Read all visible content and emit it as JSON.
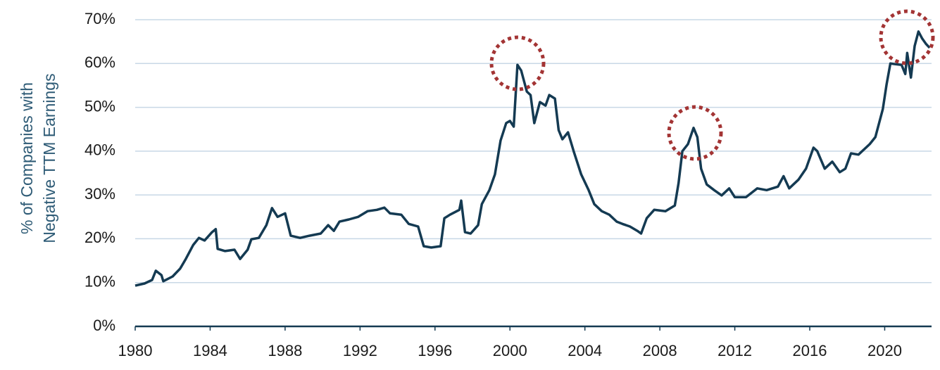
{
  "chart_data": {
    "type": "line",
    "ylabel": [
      "% of Companies with",
      "Negative TTM Earnings"
    ],
    "color": "#143a52",
    "x": [
      1980.0,
      1980.5,
      1980.9,
      1981.1,
      1981.4,
      1981.5,
      1982.0,
      1982.4,
      1982.7,
      1983.1,
      1983.4,
      1983.7,
      1984.1,
      1984.3,
      1984.4,
      1984.8,
      1985.3,
      1985.6,
      1986.0,
      1986.2,
      1986.6,
      1987.0,
      1987.3,
      1987.6,
      1988.0,
      1988.3,
      1988.8,
      1989.3,
      1989.9,
      1990.3,
      1990.6,
      1990.9,
      1991.4,
      1991.9,
      1992.4,
      1992.9,
      1993.3,
      1993.6,
      1994.2,
      1994.6,
      1995.1,
      1995.4,
      1995.8,
      1996.3,
      1996.5,
      1996.8,
      1997.3,
      1997.4,
      1997.6,
      1997.9,
      1998.3,
      1998.5,
      1998.9,
      1999.2,
      1999.5,
      1999.8,
      2000.0,
      2000.2,
      2000.4,
      2000.6,
      2000.9,
      2001.1,
      2001.3,
      2001.6,
      2001.9,
      2002.1,
      2002.4,
      2002.6,
      2002.8,
      2003.1,
      2003.4,
      2003.8,
      2004.2,
      2004.5,
      2004.9,
      2005.3,
      2005.7,
      2006.0,
      2006.4,
      2006.8,
      2007.0,
      2007.3,
      2007.7,
      2008.3,
      2008.8,
      2009.0,
      2009.2,
      2009.5,
      2009.8,
      2010.0,
      2010.2,
      2010.5,
      2010.9,
      2011.3,
      2011.7,
      2012.0,
      2012.6,
      2013.2,
      2013.7,
      2014.3,
      2014.6,
      2014.9,
      2015.4,
      2015.8,
      2016.2,
      2016.4,
      2016.8,
      2017.2,
      2017.6,
      2017.9,
      2018.2,
      2018.6,
      2019.2,
      2019.5,
      2019.9,
      2020.1,
      2020.3,
      2020.9,
      2021.1,
      2021.2,
      2021.4,
      2021.6,
      2021.8,
      2022.0,
      2022.2,
      2022.4
    ],
    "values": [
      9.3,
      9.8,
      10.6,
      12.7,
      11.7,
      10.3,
      11.4,
      13.2,
      15.4,
      18.6,
      20.2,
      19.6,
      21.5,
      22.2,
      17.7,
      17.2,
      17.5,
      15.4,
      17.5,
      19.9,
      20.2,
      23.1,
      27.0,
      25.0,
      25.8,
      20.7,
      20.2,
      20.7,
      21.2,
      23.1,
      21.8,
      23.9,
      24.4,
      25.0,
      26.3,
      26.6,
      27.1,
      25.8,
      25.5,
      23.4,
      22.8,
      18.3,
      18.0,
      18.3,
      24.7,
      25.5,
      26.6,
      28.7,
      21.5,
      21.2,
      23.1,
      27.9,
      31.1,
      34.7,
      42.4,
      46.4,
      46.9,
      45.6,
      59.7,
      58.4,
      53.6,
      52.8,
      46.4,
      51.2,
      50.4,
      52.8,
      52.0,
      44.8,
      42.7,
      44.3,
      40.0,
      34.7,
      31.1,
      27.9,
      26.3,
      25.5,
      23.9,
      23.4,
      22.8,
      21.8,
      21.2,
      24.7,
      26.6,
      26.3,
      27.6,
      32.7,
      40.0,
      41.6,
      45.3,
      43.2,
      36.0,
      32.4,
      31.1,
      29.9,
      31.5,
      29.5,
      29.5,
      31.5,
      31.1,
      31.9,
      34.3,
      31.5,
      33.5,
      36.0,
      40.8,
      40.0,
      36.0,
      37.6,
      35.2,
      36.0,
      39.5,
      39.2,
      41.6,
      43.2,
      49.6,
      55.2,
      60.0,
      59.7,
      57.6,
      62.4,
      56.8,
      64.0,
      67.3,
      65.7,
      64.5,
      63.6
    ],
    "xlim": [
      1980,
      2022.5
    ],
    "xticks": [
      1980,
      1984,
      1988,
      1992,
      1996,
      2000,
      2004,
      2008,
      2012,
      2016,
      2020
    ],
    "ylim": [
      0,
      70
    ],
    "yticks": [
      {
        "value": 0,
        "label": "0%"
      },
      {
        "value": 10,
        "label": "10%"
      },
      {
        "value": 20,
        "label": "20%"
      },
      {
        "value": 30,
        "label": "30%"
      },
      {
        "value": 40,
        "label": "40%"
      },
      {
        "value": 50,
        "label": "50%"
      },
      {
        "value": 60,
        "label": "60%"
      },
      {
        "value": 70,
        "label": "70%"
      }
    ],
    "grid": true
  }
}
